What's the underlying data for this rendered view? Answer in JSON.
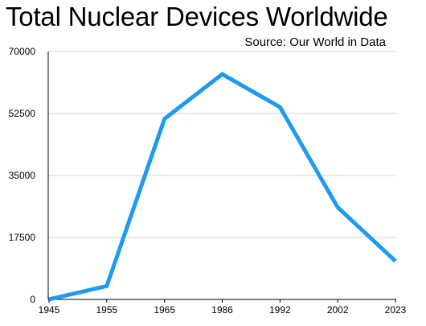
{
  "chart_data": {
    "type": "line",
    "title": "Total Nuclear Devices Worldwide",
    "subtitle": "Source: Our World in Data",
    "xlabel": "",
    "ylabel": "",
    "categories": [
      "1945",
      "1955",
      "1965",
      "1986",
      "1992",
      "2002",
      "2023"
    ],
    "series": [
      {
        "values": [
          2,
          3800,
          51000,
          63600,
          54300,
          26000,
          10800
        ]
      }
    ],
    "ylim": [
      0,
      70000
    ],
    "yticks": [
      "0",
      "17500",
      "35000",
      "52500",
      "70000"
    ],
    "grid": true,
    "legend": "none",
    "line_color": "#1E9BF0",
    "grid_color": "#D0D0D0",
    "axis_color": "#000000"
  }
}
